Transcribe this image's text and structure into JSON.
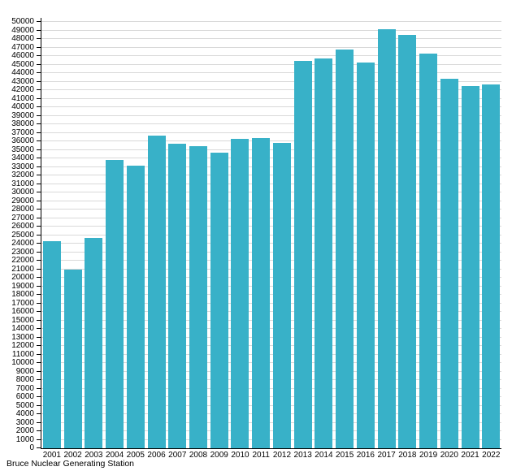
{
  "chart_data": {
    "type": "bar",
    "title": "Bruce Nuclear Generating Station",
    "xlabel": "",
    "ylabel": "",
    "categories": [
      "2001",
      "2002",
      "2003",
      "2004",
      "2005",
      "2006",
      "2007",
      "2008",
      "2009",
      "2010",
      "2011",
      "2012",
      "2013",
      "2014",
      "2015",
      "2016",
      "2017",
      "2018",
      "2019",
      "2020",
      "2021",
      "2022"
    ],
    "values": [
      24300,
      21000,
      24700,
      33800,
      33100,
      36700,
      35700,
      35400,
      34700,
      36300,
      36400,
      35800,
      45400,
      45700,
      46800,
      45200,
      49100,
      48500,
      46300,
      43300,
      42500,
      42700
    ],
    "ylim": [
      0,
      50000
    ],
    "ytick_step": 1000,
    "grid": "horizontal",
    "legend_position": "none",
    "bar_color": "#38b1c8",
    "gridline_color": "#d9d9d9",
    "axis_color": "#000000",
    "background_color": "#ffffff"
  }
}
